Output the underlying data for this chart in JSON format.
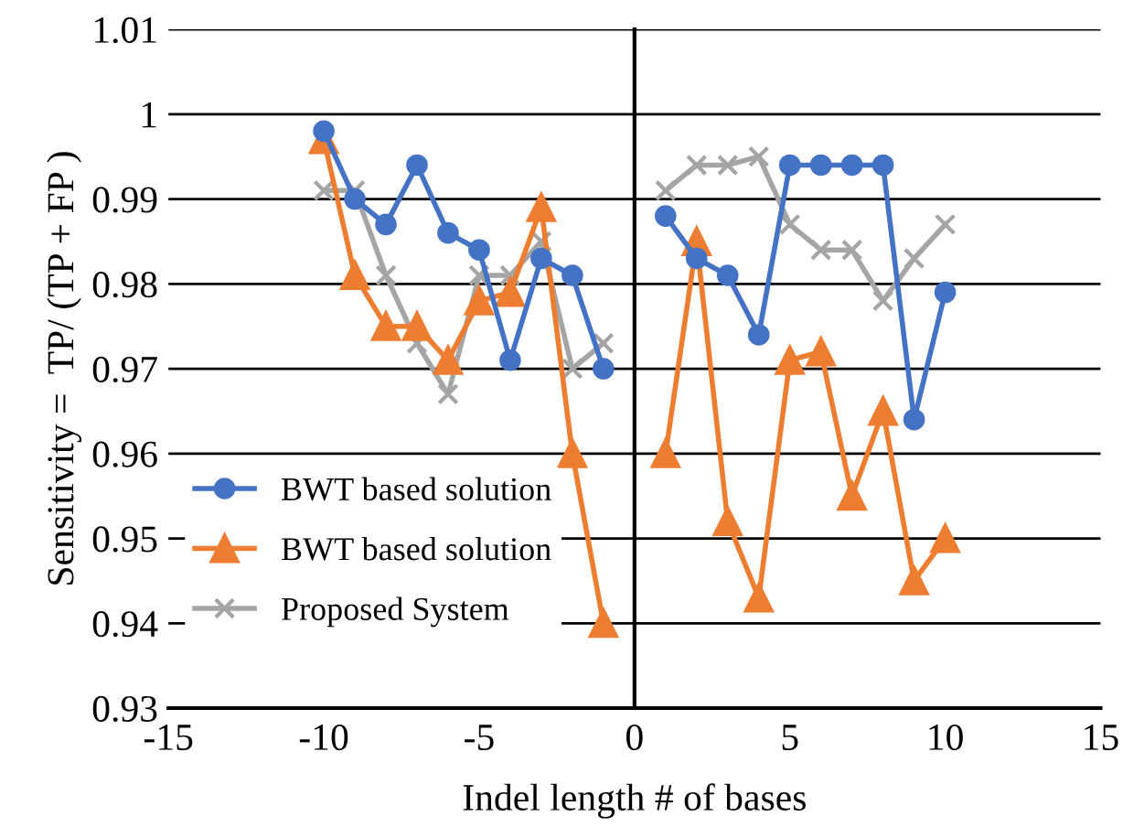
{
  "chart_data": {
    "type": "line",
    "xlabel": "Indel length # of bases",
    "ylabel": "Sensitivity =  TP/ (TP + FP )",
    "x": [
      -10,
      -9,
      -8,
      -7,
      -6,
      -5,
      -4,
      -3,
      -2,
      -1,
      0,
      1,
      2,
      3,
      4,
      5,
      6,
      7,
      8,
      9,
      10
    ],
    "series": [
      {
        "name": "BWT based solution",
        "color": "#4472c4",
        "marker": "circle",
        "values": [
          0.998,
          0.99,
          0.987,
          0.994,
          0.986,
          0.984,
          0.971,
          0.983,
          0.981,
          0.97,
          null,
          0.988,
          0.983,
          0.981,
          0.974,
          0.994,
          0.994,
          0.994,
          0.994,
          0.964,
          0.979
        ]
      },
      {
        "name": "BWT based solution",
        "color": "#ed7d31",
        "marker": "triangle",
        "values": [
          0.997,
          0.981,
          0.975,
          0.975,
          0.971,
          0.978,
          0.979,
          0.989,
          0.96,
          0.94,
          null,
          0.96,
          0.985,
          0.952,
          0.943,
          0.971,
          0.972,
          0.955,
          0.965,
          0.945,
          0.95
        ]
      },
      {
        "name": "Proposed System",
        "color": "#a5a5a5",
        "marker": "cross",
        "values": [
          0.991,
          0.991,
          0.981,
          0.973,
          0.967,
          0.981,
          0.981,
          0.985,
          0.97,
          0.973,
          null,
          0.991,
          0.994,
          0.994,
          0.995,
          0.987,
          0.984,
          0.984,
          0.978,
          0.983,
          0.987
        ]
      }
    ],
    "xlim": [
      -15,
      15
    ],
    "xticks": [
      -15,
      -10,
      -5,
      0,
      5,
      10,
      15
    ],
    "ylim": [
      0.93,
      1.01
    ],
    "yticks": [
      0.93,
      0.94,
      0.95,
      0.96,
      0.97,
      0.98,
      0.99,
      1,
      1.01
    ],
    "grid": "y",
    "legend": "left",
    "line_style": "solid"
  }
}
